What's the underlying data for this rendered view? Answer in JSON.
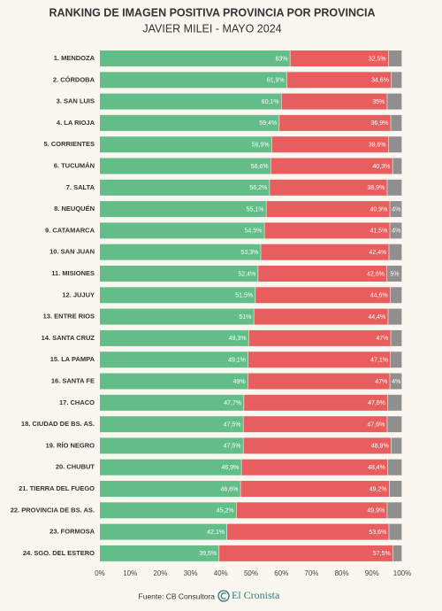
{
  "chart_data": {
    "type": "stacked-bar-horizontal",
    "title": "RANKING DE IMAGEN POSITIVA PROVINCIA POR PROVINCIA",
    "subtitle": "JAVIER MILEI - MAYO 2024",
    "source": "Fuente: CB Consultora",
    "brand": "El Cronista",
    "categories": [
      "1. MENDOZA",
      "2. CÓRDOBA",
      "3. SAN LUIS",
      "4. LA RIOJA",
      "5. CORRIENTES",
      "6. TUCUMÁN",
      "7. SALTA",
      "8. NEUQUÉN",
      "9. CATAMARCA",
      "10. SAN JUAN",
      "11. MISIONES",
      "12. JUJUY",
      "13. ENTRE RIOS",
      "14. SANTA CRUZ",
      "15. LA PAMPA",
      "16. SANTA FE",
      "17. CHACO",
      "18. CIUDAD DE BS. AS.",
      "19. RÍO NEGRO",
      "20. CHUBUT",
      "21. TIERRA DEL FUEGO",
      "22. PROVINCIA DE BS. AS.",
      "23. FORMOSA",
      "24. SGO. DEL ESTERO"
    ],
    "series": [
      {
        "color": "#63bd89",
        "values": [
          63,
          61.9,
          60.1,
          59.4,
          56.9,
          56.6,
          56.2,
          55.1,
          54.5,
          53.3,
          52.4,
          51.5,
          51,
          49.3,
          49.1,
          49,
          47.7,
          47.5,
          47.5,
          46.9,
          46.6,
          45.2,
          42.1,
          39.5
        ],
        "value_labels": [
          "63%",
          "61,9%",
          "60,1%",
          "59,4%",
          "56,9%",
          "56,6%",
          "56,2%",
          "55,1%",
          "54,5%",
          "53,3%",
          "52,4%",
          "51,5%",
          "51%",
          "49,3%",
          "49,1%",
          "49%",
          "47,7%",
          "47,5%",
          "47,5%",
          "46,9%",
          "46,6%",
          "45,2%",
          "42,1%",
          "39,5%"
        ]
      },
      {
        "color": "#e85d5d",
        "values": [
          32.5,
          34.6,
          35,
          36.9,
          38.6,
          40.3,
          38.9,
          40.9,
          41.5,
          42.4,
          42.6,
          44.6,
          44.4,
          47,
          47.1,
          47,
          47.6,
          47.6,
          48.9,
          48.4,
          49.2,
          49.9,
          53.6,
          57.5
        ],
        "value_labels": [
          "32,5%",
          "34,6%",
          "35%",
          "36,9%",
          "38,6%",
          "40,3%",
          "38,9%",
          "40,9%",
          "41,5%",
          "42,4%",
          "42,6%",
          "44,6%",
          "44,4%",
          "47%",
          "47,1%",
          "47%",
          "47,6%",
          "47,6%",
          "48,9%",
          "48,4%",
          "49,2%",
          "49,9%",
          "53,6%",
          "57,5%"
        ]
      },
      {
        "color": "#8f8f8f",
        "values": [
          4.5,
          3.5,
          4.9,
          3.7,
          4.5,
          3.1,
          4.9,
          4,
          4,
          4.3,
          5,
          3.9,
          4.6,
          3.7,
          3.8,
          4,
          4.7,
          4.9,
          3.6,
          4.7,
          4.2,
          4.9,
          4.3,
          3
        ],
        "value_labels": [
          null,
          null,
          null,
          null,
          null,
          null,
          null,
          "4%",
          "4%",
          null,
          "5%",
          null,
          null,
          null,
          null,
          "4%",
          null,
          null,
          null,
          null,
          null,
          null,
          null,
          null
        ]
      }
    ],
    "xlim": [
      0,
      100
    ],
    "xticks": [
      {
        "value": 0,
        "label": "0%"
      },
      {
        "value": 10,
        "label": "10%"
      },
      {
        "value": 20,
        "label": "20%"
      },
      {
        "value": 30,
        "label": "30%"
      },
      {
        "value": 40,
        "label": "40%"
      },
      {
        "value": 50,
        "label": "50%"
      },
      {
        "value": 60,
        "label": "60%"
      },
      {
        "value": 70,
        "label": "70%"
      },
      {
        "value": 80,
        "label": "80%"
      },
      {
        "value": 90,
        "label": "90%"
      },
      {
        "value": 100,
        "label": "100%"
      }
    ]
  }
}
